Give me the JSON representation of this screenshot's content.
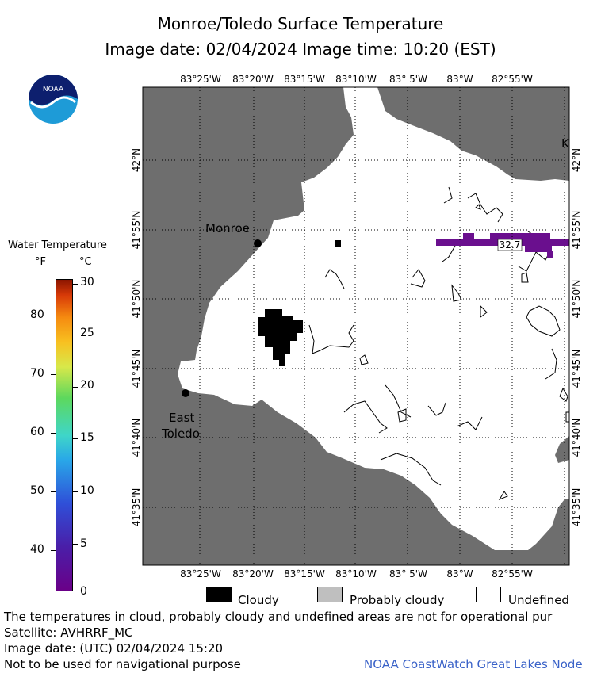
{
  "header": {
    "title": "Monroe/Toledo Surface Temperature",
    "subtitle": "Image date: 02/04/2024     Image time: 10:20 (EST)"
  },
  "logo": {
    "text": "NOAA",
    "icon": "noaa-logo-icon"
  },
  "legend": {
    "title": "Water Temperature",
    "unit_f": "°F",
    "unit_c": "°C",
    "f_ticks": [
      "80",
      "70",
      "60",
      "50",
      "40"
    ],
    "c_ticks": [
      "30",
      "25",
      "20",
      "15",
      "10",
      "5",
      "0"
    ]
  },
  "map": {
    "top_lon_labels": [
      "83°25'W",
      "83°20'W",
      "83°15'W",
      "83°10'W",
      "83° 5'W",
      "83°W",
      "82°55'W"
    ],
    "bottom_lon_labels": [
      "83°25'W",
      "83°20'W",
      "83°15'W",
      "83°10'W",
      "83° 5'W",
      "83°W",
      "82°55'W"
    ],
    "left_lat_labels": [
      "42°N",
      "41°55'N",
      "41°50'N",
      "41°45'N",
      "41°40'N",
      "41°35'N"
    ],
    "right_lat_labels": [
      "42°N",
      "41°55'N",
      "41°50'N",
      "41°45'N",
      "41°40'N",
      "41°35'N"
    ],
    "places": {
      "monroe": "Monroe",
      "east_toledo_1": "East",
      "east_toledo_2": "Toledo",
      "edge_k": "K"
    },
    "isotherm_label": "32.7",
    "colors": {
      "land": "#6e6e6e",
      "water": "#ffffff",
      "cloud": "#000000",
      "isotherm": "#6a0f8e"
    }
  },
  "key": {
    "cloudy": "Cloudy",
    "probably_cloudy": "Probably cloudy",
    "undefined": "Undefined"
  },
  "notes": {
    "line1": "The temperatures in cloud, probably cloudy and undefined areas are not for operational pur",
    "line2": "Satellite: AVHRRF_MC",
    "line3": "Image date: (UTC) 02/04/2024  15:20",
    "line4": "Not to be used for navigational purpose",
    "credit": "NOAA CoastWatch Great Lakes Node"
  }
}
